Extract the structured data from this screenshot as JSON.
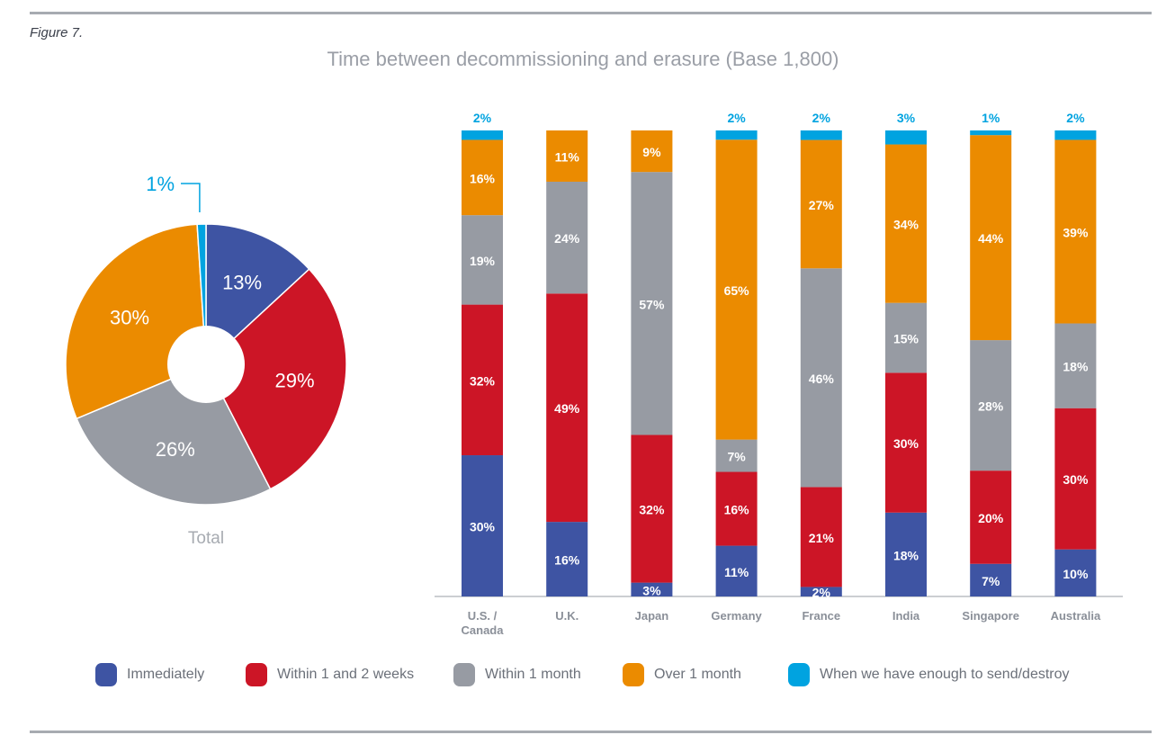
{
  "figure_label": "Figure 7.",
  "colors": {
    "immediately": "#3e54a3",
    "weeks": "#cc1526",
    "month": "#979ba3",
    "over": "#eb8b00",
    "enough": "#00a3e0",
    "pie_label_light": "#ffffff",
    "pie_label_dark": "#3a3f4a"
  },
  "chart_data": [
    {
      "type": "pie",
      "title": "Time between decommissioning and erasure (Base 1,800)",
      "caption": "Total",
      "slices": [
        {
          "name": "Immediately",
          "value": 13,
          "label": "13%"
        },
        {
          "name": "Within 1 and 2 weeks",
          "value": 29,
          "label": "29%"
        },
        {
          "name": "Within 1 month",
          "value": 26,
          "label": "26%"
        },
        {
          "name": "Over 1 month",
          "value": 30,
          "label": "30%"
        },
        {
          "name": "When we have enough to send/destroy",
          "value": 1,
          "label": "1%"
        }
      ]
    },
    {
      "type": "bar",
      "stacked": true,
      "categories": [
        "U.S. / Canada",
        "U.K.",
        "Japan",
        "Germany",
        "France",
        "India",
        "Singapore",
        "Australia"
      ],
      "category_lines": [
        [
          "U.S. /",
          "Canada"
        ],
        [
          "U.K."
        ],
        [
          "Japan"
        ],
        [
          "Germany"
        ],
        [
          "France"
        ],
        [
          "India"
        ],
        [
          "Singapore"
        ],
        [
          "Australia"
        ]
      ],
      "series": [
        {
          "name": "Immediately",
          "values": [
            30,
            16,
            3,
            11,
            2,
            18,
            7,
            10
          ],
          "labels": [
            "30%",
            "16%",
            "3%",
            "11%",
            "2%",
            "18%",
            "7%",
            "10%"
          ]
        },
        {
          "name": "Within 1 and 2 weeks",
          "values": [
            32,
            49,
            32,
            16,
            21,
            30,
            20,
            30
          ],
          "labels": [
            "32%",
            "49%",
            "32%",
            "16%",
            "21%",
            "30%",
            "20%",
            "30%"
          ]
        },
        {
          "name": "Within 1 month",
          "values": [
            19,
            24,
            57,
            7,
            46,
            15,
            28,
            18
          ],
          "labels": [
            "19%",
            "24%",
            "57%",
            "7%",
            "46%",
            "15%",
            "28%",
            "18%"
          ]
        },
        {
          "name": "Over 1 month",
          "values": [
            16,
            11,
            9,
            65,
            27,
            34,
            44,
            39
          ],
          "labels": [
            "16%",
            "11%",
            "9%",
            "65%",
            "27%",
            "34%",
            "44%",
            "39%"
          ]
        },
        {
          "name": "When we have enough to send/destroy",
          "values": [
            2,
            0,
            0,
            2,
            2,
            3,
            1,
            2
          ],
          "labels": [
            "2%",
            "",
            "",
            "2%",
            "2%",
            "3%",
            "1%",
            "2%"
          ]
        }
      ],
      "ylim": [
        0,
        100
      ]
    }
  ],
  "legend": [
    {
      "label": "Immediately",
      "color_key": "immediately"
    },
    {
      "label": "Within 1 and 2 weeks",
      "color_key": "weeks"
    },
    {
      "label": "Within 1 month",
      "color_key": "month"
    },
    {
      "label": "Over 1 month",
      "color_key": "over"
    },
    {
      "label": "When we have enough to send/destroy",
      "color_key": "enough"
    }
  ]
}
